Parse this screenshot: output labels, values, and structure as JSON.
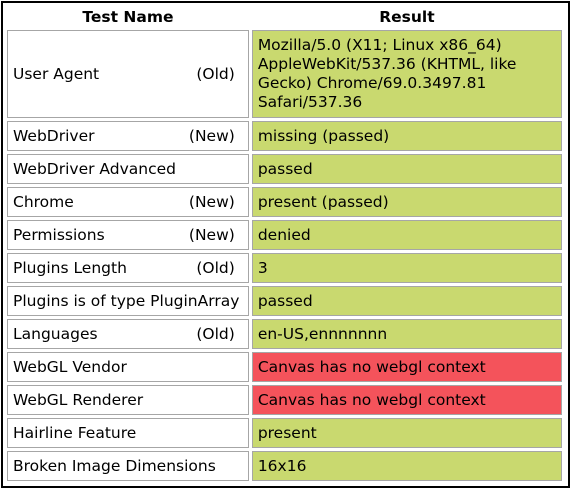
{
  "header": {
    "test_name": "Test Name",
    "result": "Result"
  },
  "rows": [
    {
      "name": "User Agent",
      "tag": "(Old)",
      "result": "Mozilla/5.0 (X11; Linux x86_64) AppleWebKit/537.36 (KHTML, like Gecko) Chrome/69.0.3497.81 Safari/537.36",
      "status": "pass"
    },
    {
      "name": "WebDriver",
      "tag": "(New)",
      "result": "missing (passed)",
      "status": "pass"
    },
    {
      "name": "WebDriver Advanced",
      "tag": "",
      "result": "passed",
      "status": "pass"
    },
    {
      "name": "Chrome",
      "tag": "(New)",
      "result": "present (passed)",
      "status": "pass"
    },
    {
      "name": "Permissions",
      "tag": "(New)",
      "result": "denied",
      "status": "pass"
    },
    {
      "name": "Plugins Length",
      "tag": "(Old)",
      "result": "3",
      "status": "pass"
    },
    {
      "name": "Plugins is of type PluginArray",
      "tag": "",
      "result": "passed",
      "status": "pass"
    },
    {
      "name": "Languages",
      "tag": "(Old)",
      "result": "en-US,ennnnnnn",
      "status": "pass"
    },
    {
      "name": "WebGL Vendor",
      "tag": "",
      "result": "Canvas has no webgl context",
      "status": "fail"
    },
    {
      "name": "WebGL Renderer",
      "tag": "",
      "result": "Canvas has no webgl context",
      "status": "fail"
    },
    {
      "name": "Hairline Feature",
      "tag": "",
      "result": "present",
      "status": "pass"
    },
    {
      "name": "Broken Image Dimensions",
      "tag": "",
      "result": "16x16",
      "status": "pass"
    }
  ],
  "colors": {
    "pass": "#c9d96f",
    "fail": "#f4535b"
  }
}
